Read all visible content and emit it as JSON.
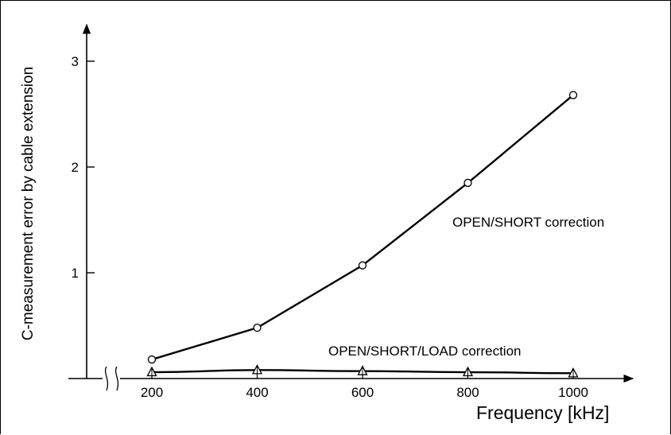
{
  "chart_data": {
    "type": "line",
    "title": "",
    "xlabel": "Frequency [kHz]",
    "ylabel": "C-measurement error by cable extension",
    "x": [
      200,
      400,
      600,
      800,
      1000
    ],
    "xlim": [
      100,
      1200
    ],
    "ylim": [
      0,
      3.3
    ],
    "xticks": [
      "200",
      "400",
      "600",
      "800",
      "1000"
    ],
    "yticks": [
      "1",
      "2",
      "3"
    ],
    "x_axis_break": true,
    "grid": false,
    "series": [
      {
        "name": "OPEN/SHORT correction",
        "marker": "circle",
        "values": [
          0.18,
          0.48,
          1.07,
          1.85,
          2.68
        ]
      },
      {
        "name": "OPEN/SHORT/LOAD correction",
        "marker": "triangle",
        "values": [
          0.06,
          0.08,
          0.07,
          0.06,
          0.05
        ]
      }
    ]
  }
}
